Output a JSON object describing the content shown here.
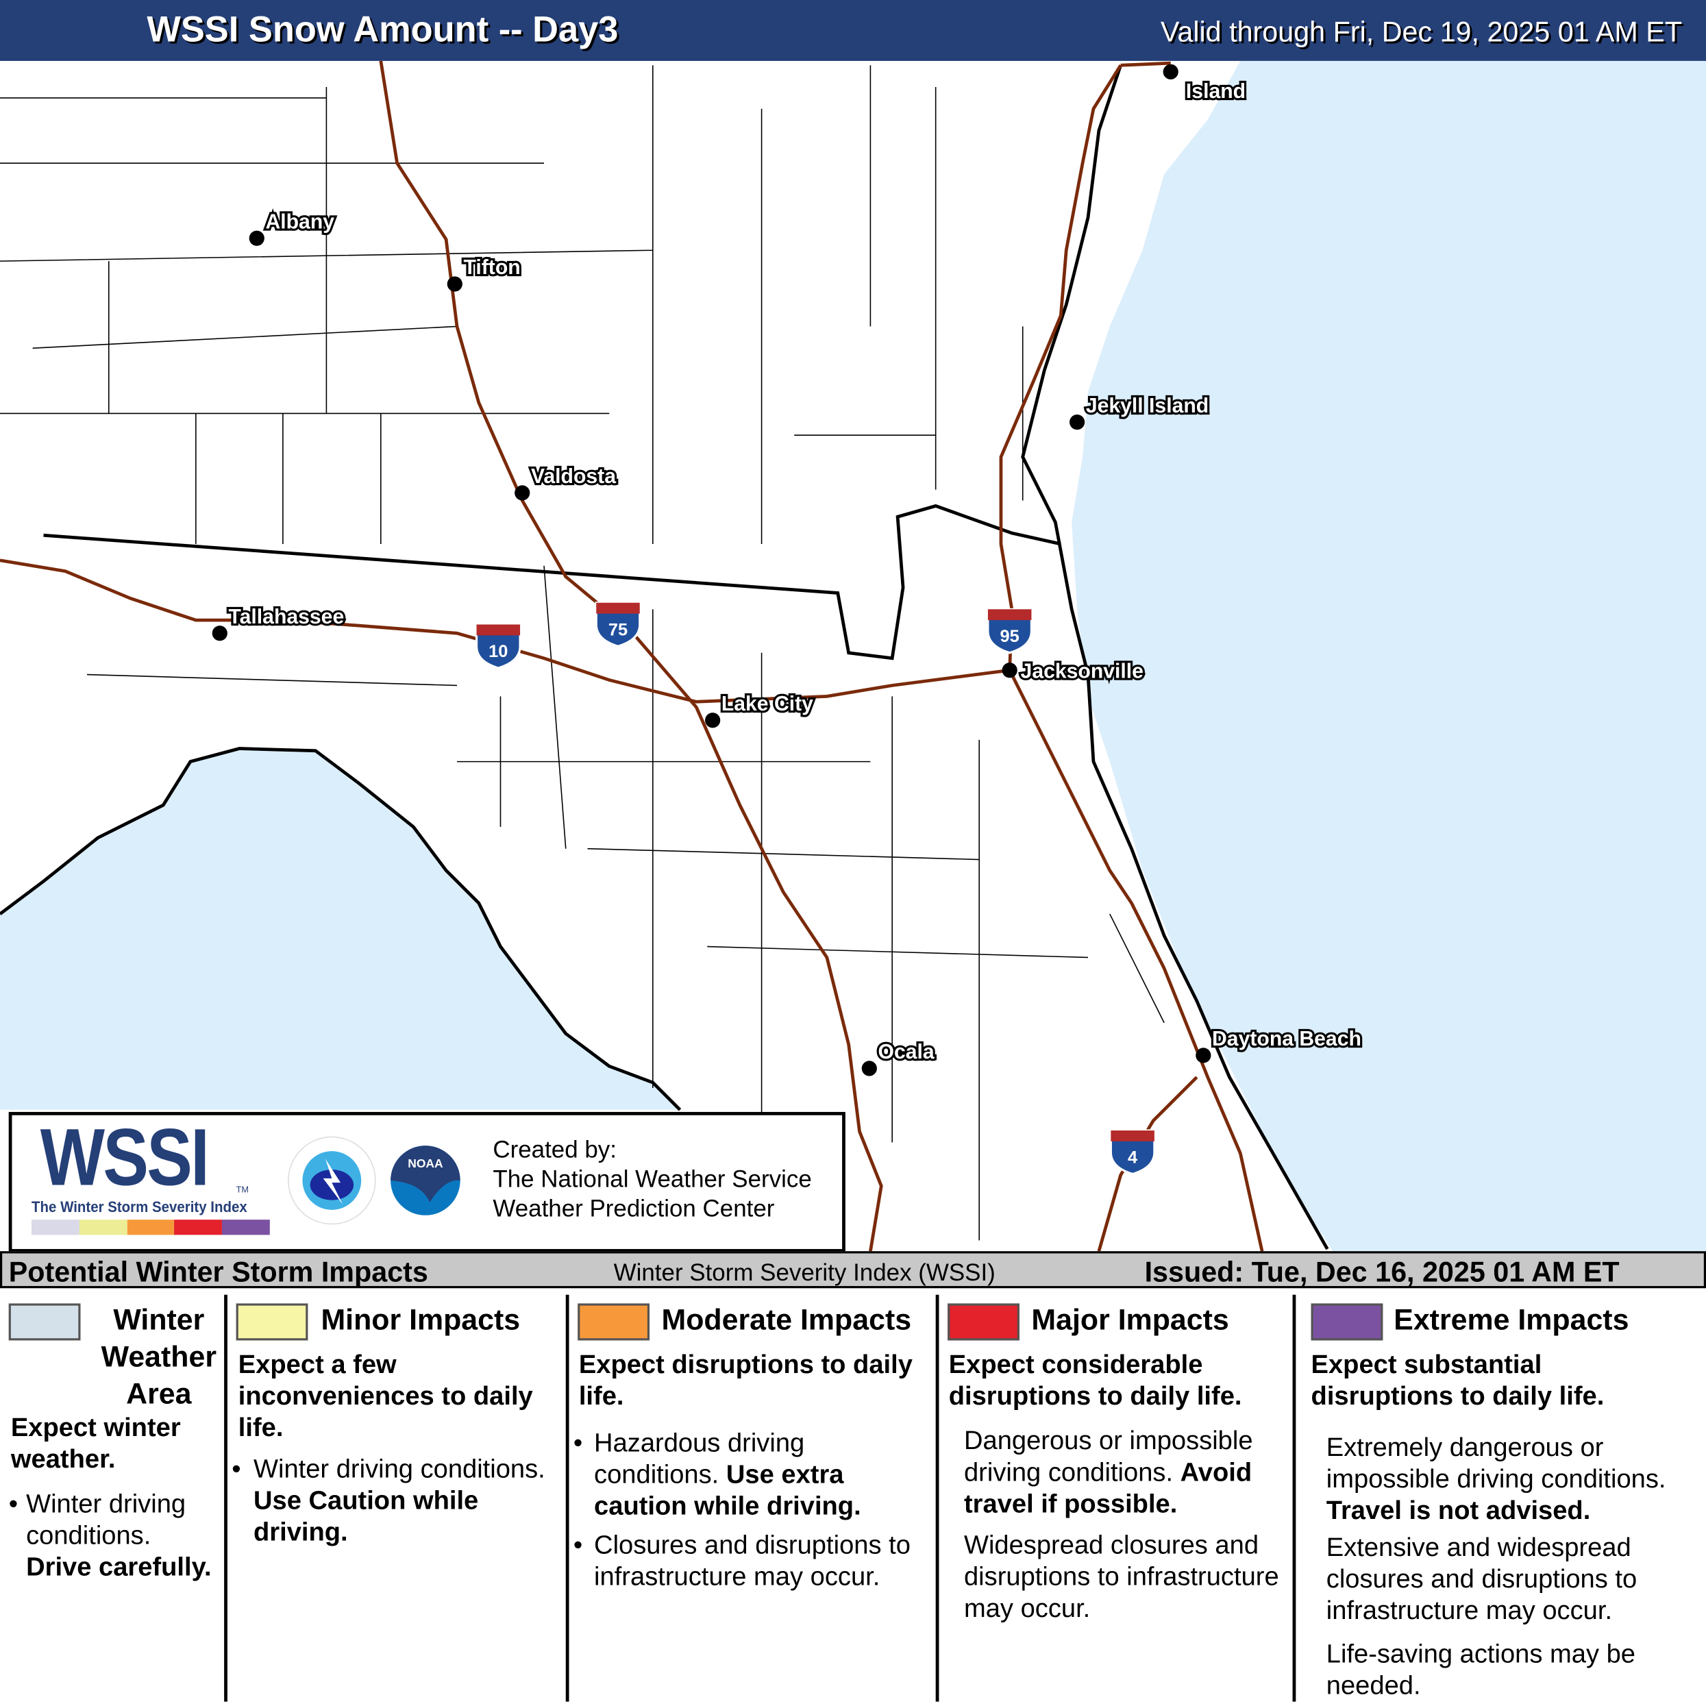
{
  "header": {
    "title": "WSSI Snow Amount -- Day3",
    "valid": "Valid through Fri, Dec 19, 2025 01 AM ET"
  },
  "map": {
    "colors": {
      "ocean": "#dbeefc",
      "land": "#ffffff",
      "interstate": "#7a2a0a",
      "state_line": "#000000"
    },
    "cities": [
      {
        "name": "Albany"
      },
      {
        "name": "Tifton"
      },
      {
        "name": "Valdosta"
      },
      {
        "name": "Tallahassee"
      },
      {
        "name": "Lake City"
      },
      {
        "name": "Jacksonville"
      },
      {
        "name": "Jekyll Island"
      },
      {
        "name": "Ocala"
      },
      {
        "name": "Daytona Beach"
      },
      {
        "name": "Island"
      }
    ],
    "interstates": [
      "10",
      "75",
      "95",
      "4"
    ]
  },
  "logo": {
    "wssi": "WSSI",
    "tm": "TM",
    "subtitle": "The Winter Storm Severity Index",
    "scale_colors": [
      "#d9d9e8",
      "#eced95",
      "#f7993a",
      "#e3222b",
      "#7b52a1"
    ],
    "created_by": "Created by:",
    "org1": "The National Weather Service",
    "org2": "Weather Prediction Center",
    "nws_seal": "NATIONAL WEATHER SERVICE",
    "noaa_seal": "NOAA"
  },
  "band": {
    "left": "Potential Winter Storm Impacts",
    "center": "Winter Storm Severity Index (WSSI)",
    "right": "Issued: Tue, Dec 16, 2025 01 AM ET"
  },
  "impacts": [
    {
      "title": "Winter Weather Area",
      "color": "#d5e1ea",
      "lead": "Expect winter weather.",
      "text1": "Winter driving conditions.",
      "bold1": "Drive carefully."
    },
    {
      "title": "Minor Impacts",
      "color": "#f7f5a6",
      "lead": "Expect a few inconveniences to daily life.",
      "text1": "Winter driving conditions.",
      "bold1": "Use Caution while driving."
    },
    {
      "title": "Moderate Impacts",
      "color": "#f7993a",
      "lead": "Expect disruptions to daily life.",
      "text1": "Hazardous driving conditions.",
      "bold1": "Use extra caution while driving.",
      "text2": "Closures and disruptions to infrastructure may occur."
    },
    {
      "title": "Major Impacts",
      "color": "#e3222b",
      "lead": "Expect considerable disruptions to daily life.",
      "text1": "Dangerous or impossible driving conditions.",
      "bold1": "Avoid travel if possible.",
      "text2": "Widespread closures and disruptions to infrastructure may occur."
    },
    {
      "title": "Extreme Impacts",
      "color": "#7b52a1",
      "lead": "Expect substantial disruptions to daily life.",
      "text1": "Extremely dangerous or impossible driving conditions.",
      "bold1": "Travel is not advised.",
      "text2": "Extensive and widespread closures and disruptions to infrastructure may occur.",
      "text3": "Life-saving actions may be needed."
    }
  ]
}
